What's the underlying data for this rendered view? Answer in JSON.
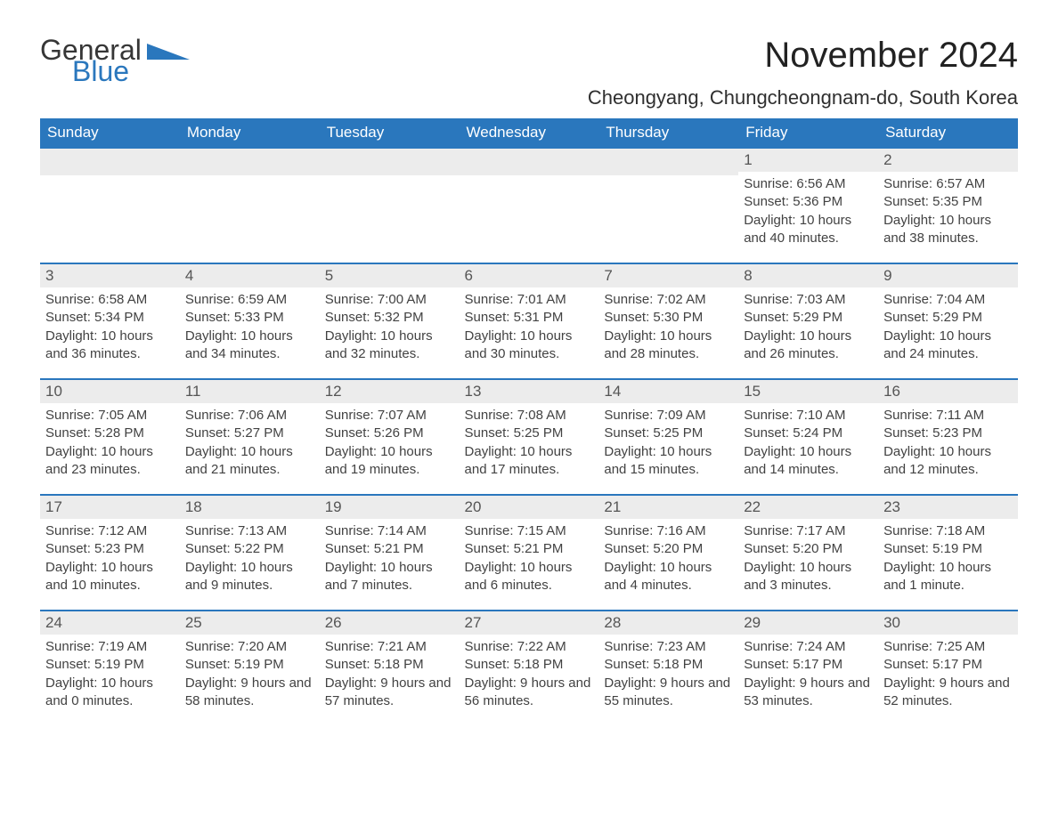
{
  "logo": {
    "word1": "General",
    "word2": "Blue",
    "word1_color": "#363636",
    "word2_color": "#2a77bd"
  },
  "title": "November 2024",
  "subtitle": "Cheongyang, Chungcheongnam-do, South Korea",
  "header_bg": "#2a77bd",
  "header_fg": "#ffffff",
  "daynum_bg": "#ececec",
  "row_border": "#2a77bd",
  "columns": [
    "Sunday",
    "Monday",
    "Tuesday",
    "Wednesday",
    "Thursday",
    "Friday",
    "Saturday"
  ],
  "weeks": [
    [
      {
        "empty": true
      },
      {
        "empty": true
      },
      {
        "empty": true
      },
      {
        "empty": true
      },
      {
        "empty": true
      },
      {
        "n": "1",
        "sunrise": "Sunrise: 6:56 AM",
        "sunset": "Sunset: 5:36 PM",
        "daylight": "Daylight: 10 hours and 40 minutes."
      },
      {
        "n": "2",
        "sunrise": "Sunrise: 6:57 AM",
        "sunset": "Sunset: 5:35 PM",
        "daylight": "Daylight: 10 hours and 38 minutes."
      }
    ],
    [
      {
        "n": "3",
        "sunrise": "Sunrise: 6:58 AM",
        "sunset": "Sunset: 5:34 PM",
        "daylight": "Daylight: 10 hours and 36 minutes."
      },
      {
        "n": "4",
        "sunrise": "Sunrise: 6:59 AM",
        "sunset": "Sunset: 5:33 PM",
        "daylight": "Daylight: 10 hours and 34 minutes."
      },
      {
        "n": "5",
        "sunrise": "Sunrise: 7:00 AM",
        "sunset": "Sunset: 5:32 PM",
        "daylight": "Daylight: 10 hours and 32 minutes."
      },
      {
        "n": "6",
        "sunrise": "Sunrise: 7:01 AM",
        "sunset": "Sunset: 5:31 PM",
        "daylight": "Daylight: 10 hours and 30 minutes."
      },
      {
        "n": "7",
        "sunrise": "Sunrise: 7:02 AM",
        "sunset": "Sunset: 5:30 PM",
        "daylight": "Daylight: 10 hours and 28 minutes."
      },
      {
        "n": "8",
        "sunrise": "Sunrise: 7:03 AM",
        "sunset": "Sunset: 5:29 PM",
        "daylight": "Daylight: 10 hours and 26 minutes."
      },
      {
        "n": "9",
        "sunrise": "Sunrise: 7:04 AM",
        "sunset": "Sunset: 5:29 PM",
        "daylight": "Daylight: 10 hours and 24 minutes."
      }
    ],
    [
      {
        "n": "10",
        "sunrise": "Sunrise: 7:05 AM",
        "sunset": "Sunset: 5:28 PM",
        "daylight": "Daylight: 10 hours and 23 minutes."
      },
      {
        "n": "11",
        "sunrise": "Sunrise: 7:06 AM",
        "sunset": "Sunset: 5:27 PM",
        "daylight": "Daylight: 10 hours and 21 minutes."
      },
      {
        "n": "12",
        "sunrise": "Sunrise: 7:07 AM",
        "sunset": "Sunset: 5:26 PM",
        "daylight": "Daylight: 10 hours and 19 minutes."
      },
      {
        "n": "13",
        "sunrise": "Sunrise: 7:08 AM",
        "sunset": "Sunset: 5:25 PM",
        "daylight": "Daylight: 10 hours and 17 minutes."
      },
      {
        "n": "14",
        "sunrise": "Sunrise: 7:09 AM",
        "sunset": "Sunset: 5:25 PM",
        "daylight": "Daylight: 10 hours and 15 minutes."
      },
      {
        "n": "15",
        "sunrise": "Sunrise: 7:10 AM",
        "sunset": "Sunset: 5:24 PM",
        "daylight": "Daylight: 10 hours and 14 minutes."
      },
      {
        "n": "16",
        "sunrise": "Sunrise: 7:11 AM",
        "sunset": "Sunset: 5:23 PM",
        "daylight": "Daylight: 10 hours and 12 minutes."
      }
    ],
    [
      {
        "n": "17",
        "sunrise": "Sunrise: 7:12 AM",
        "sunset": "Sunset: 5:23 PM",
        "daylight": "Daylight: 10 hours and 10 minutes."
      },
      {
        "n": "18",
        "sunrise": "Sunrise: 7:13 AM",
        "sunset": "Sunset: 5:22 PM",
        "daylight": "Daylight: 10 hours and 9 minutes."
      },
      {
        "n": "19",
        "sunrise": "Sunrise: 7:14 AM",
        "sunset": "Sunset: 5:21 PM",
        "daylight": "Daylight: 10 hours and 7 minutes."
      },
      {
        "n": "20",
        "sunrise": "Sunrise: 7:15 AM",
        "sunset": "Sunset: 5:21 PM",
        "daylight": "Daylight: 10 hours and 6 minutes."
      },
      {
        "n": "21",
        "sunrise": "Sunrise: 7:16 AM",
        "sunset": "Sunset: 5:20 PM",
        "daylight": "Daylight: 10 hours and 4 minutes."
      },
      {
        "n": "22",
        "sunrise": "Sunrise: 7:17 AM",
        "sunset": "Sunset: 5:20 PM",
        "daylight": "Daylight: 10 hours and 3 minutes."
      },
      {
        "n": "23",
        "sunrise": "Sunrise: 7:18 AM",
        "sunset": "Sunset: 5:19 PM",
        "daylight": "Daylight: 10 hours and 1 minute."
      }
    ],
    [
      {
        "n": "24",
        "sunrise": "Sunrise: 7:19 AM",
        "sunset": "Sunset: 5:19 PM",
        "daylight": "Daylight: 10 hours and 0 minutes."
      },
      {
        "n": "25",
        "sunrise": "Sunrise: 7:20 AM",
        "sunset": "Sunset: 5:19 PM",
        "daylight": "Daylight: 9 hours and 58 minutes."
      },
      {
        "n": "26",
        "sunrise": "Sunrise: 7:21 AM",
        "sunset": "Sunset: 5:18 PM",
        "daylight": "Daylight: 9 hours and 57 minutes."
      },
      {
        "n": "27",
        "sunrise": "Sunrise: 7:22 AM",
        "sunset": "Sunset: 5:18 PM",
        "daylight": "Daylight: 9 hours and 56 minutes."
      },
      {
        "n": "28",
        "sunrise": "Sunrise: 7:23 AM",
        "sunset": "Sunset: 5:18 PM",
        "daylight": "Daylight: 9 hours and 55 minutes."
      },
      {
        "n": "29",
        "sunrise": "Sunrise: 7:24 AM",
        "sunset": "Sunset: 5:17 PM",
        "daylight": "Daylight: 9 hours and 53 minutes."
      },
      {
        "n": "30",
        "sunrise": "Sunrise: 7:25 AM",
        "sunset": "Sunset: 5:17 PM",
        "daylight": "Daylight: 9 hours and 52 minutes."
      }
    ]
  ]
}
